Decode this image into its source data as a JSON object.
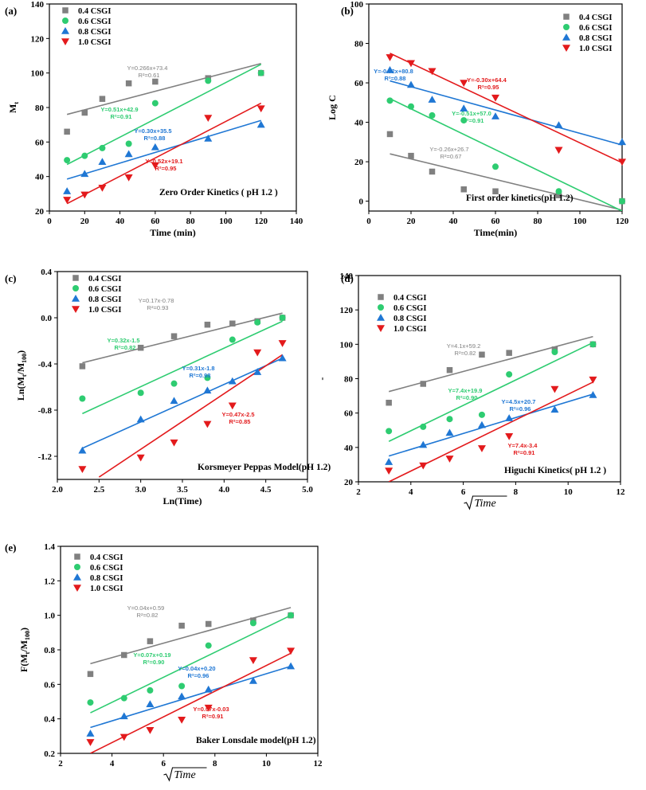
{
  "colors": {
    "s04": "#808080",
    "s06": "#2ecc71",
    "s08": "#1f77d4",
    "s10": "#e31a1c"
  },
  "chart_data": [
    {
      "id": "a",
      "type": "scatter",
      "panel_label": "(a)",
      "title": "Zero Order Kinetics ( pH 1.2 )",
      "xlabel": "Time (min)",
      "ylabel": "M",
      "ylabel_sub": "t",
      "xlim": [
        0,
        140
      ],
      "ylim": [
        20,
        140
      ],
      "xticks": [
        0,
        20,
        40,
        60,
        80,
        100,
        120,
        140
      ],
      "yticks": [
        20,
        40,
        60,
        80,
        100,
        120,
        140
      ],
      "xtick_labels": [
        "0",
        "20",
        "40",
        "60",
        "80",
        "100",
        "120",
        "140"
      ],
      "ytick_labels": [
        "20",
        "40",
        "60",
        "80",
        "100",
        "120",
        "140"
      ],
      "x": [
        10,
        20,
        30,
        45,
        60,
        90,
        120
      ],
      "series": [
        {
          "name": "0.4 CSGI",
          "marker": "square",
          "values": [
            66,
            77,
            85,
            94,
            95,
            97,
            100
          ],
          "fit": [
            76,
            105.5
          ],
          "eq": "Y=0.266x+73.4",
          "r2": "R²=0.61"
        },
        {
          "name": "0.6 CSGI",
          "marker": "circle",
          "values": [
            49.5,
            52,
            56.5,
            59,
            82.5,
            95.5,
            100
          ],
          "fit": [
            47,
            105
          ],
          "eq": "Y=0.51x+42.9",
          "r2": "R²=0.91"
        },
        {
          "name": "0.8 CSGI",
          "marker": "tri-up",
          "values": [
            31.5,
            41.5,
            48.5,
            53,
            57,
            62,
            70
          ],
          "fit": [
            38.5,
            72.5
          ],
          "eq": "Y=0.30x+35.5",
          "r2": "R²=0.88"
        },
        {
          "name": "1.0 CSGI",
          "marker": "tri-down",
          "values": [
            26.5,
            29.5,
            33.5,
            39.5,
            46.5,
            74,
            79.5
          ],
          "fit": [
            24.3,
            82.5
          ],
          "eq": "Y=0.52x+19.1",
          "r2": "R²=0.95"
        }
      ],
      "legend": "top-left"
    },
    {
      "id": "b",
      "type": "scatter",
      "panel_label": "(b)",
      "title": "First order kinetics(pH 1.2)",
      "xlabel": "Time(min)",
      "ylabel": "Log C",
      "xlim": [
        0,
        120
      ],
      "ylim": [
        -5,
        100
      ],
      "xticks": [
        0,
        20,
        40,
        60,
        80,
        100,
        120
      ],
      "yticks": [
        0,
        20,
        40,
        60,
        80,
        100
      ],
      "xtick_labels": [
        "0",
        "20",
        "40",
        "60",
        "80",
        "100",
        "120"
      ],
      "ytick_labels": [
        "0",
        "20",
        "40",
        "60",
        "80",
        "100"
      ],
      "x": [
        10,
        20,
        30,
        45,
        60,
        90,
        120
      ],
      "series": [
        {
          "name": "0.4 CSGI",
          "marker": "square",
          "values": [
            34,
            23,
            15,
            6,
            5,
            3,
            0
          ],
          "fit": [
            24,
            -4.5
          ],
          "eq": "Y=-0.26x+26.7",
          "r2": "R²=0.67"
        },
        {
          "name": "0.6 CSGI",
          "marker": "circle",
          "values": [
            51,
            48,
            43.5,
            41,
            17.5,
            5,
            0
          ],
          "fit": [
            52,
            -5
          ],
          "eq": "Y=-0.51x+57.0",
          "r2": "R²=0.91"
        },
        {
          "name": "0.8 CSGI",
          "marker": "tri-up",
          "values": [
            66.5,
            59,
            51.5,
            47,
            43,
            38.5,
            30
          ],
          "fit": [
            61,
            28.5
          ],
          "eq": "Y=-0.52x+80.8",
          "r2": "R²=0.88"
        },
        {
          "name": "1.0 CSGI",
          "marker": "tri-down",
          "values": [
            73,
            70,
            66,
            60,
            52.5,
            26,
            20
          ],
          "fit": [
            75,
            19.5
          ],
          "eq": "Y=-0.30x+64.4",
          "r2": "R²=0.95"
        }
      ],
      "legend": "top-right"
    },
    {
      "id": "c",
      "type": "scatter",
      "panel_label": "(c)",
      "title": "Korsmeyer Peppas Model(pH 1.2)",
      "xlabel": "Ln(Time)",
      "ylabel": "Ln(M",
      "ylabel_sub": "t",
      "ylabel_mid": "/M",
      "ylabel_sub2": "100",
      "ylabel_end": ")",
      "xlim": [
        2.0,
        5.0
      ],
      "ylim": [
        -1.4,
        0.4
      ],
      "xticks": [
        2.0,
        2.5,
        3.0,
        3.5,
        4.0,
        4.5,
        5.0
      ],
      "yticks": [
        -1.2,
        -0.8,
        -0.4,
        0.0,
        0.4
      ],
      "xtick_labels": [
        "2.0",
        "2.5",
        "3.0",
        "3.5",
        "4.0",
        "4.5",
        "5.0"
      ],
      "ytick_labels": [
        "-1.2",
        "-0.8",
        "-0.4",
        "0.0",
        "0.4"
      ],
      "x": [
        2.3,
        3.0,
        3.4,
        3.8,
        4.1,
        4.4,
        4.7
      ],
      "series": [
        {
          "name": "0.4 CSGI",
          "marker": "square",
          "values": [
            -0.42,
            -0.26,
            -0.16,
            -0.06,
            -0.05,
            -0.03,
            0.0
          ],
          "fit": [
            -0.39,
            0.04
          ],
          "eq": "Y=0.17x-0.78",
          "r2": "R²=0.93"
        },
        {
          "name": "0.6 CSGI",
          "marker": "circle",
          "values": [
            -0.7,
            -0.65,
            -0.57,
            -0.52,
            -0.19,
            -0.04,
            0.0
          ],
          "fit": [
            -0.83,
            -0.03
          ],
          "eq": "Y=0.32x-1.5",
          "r2": "R²=0.82"
        },
        {
          "name": "0.8 CSGI",
          "marker": "tri-up",
          "values": [
            -1.15,
            -0.88,
            -0.72,
            -0.63,
            -0.55,
            -0.47,
            -0.35
          ],
          "fit": [
            -1.13,
            -0.35
          ],
          "eq": "Y=0.31x-1.8",
          "r2": "R²=0.98"
        },
        {
          "name": "1.0 CSGI",
          "marker": "tri-down",
          "values": [
            -1.31,
            -1.21,
            -1.08,
            -0.92,
            -0.76,
            -0.3,
            -0.22
          ],
          "fit": [
            -1.38,
            -0.32
          ],
          "fit_x": [
            2.5,
            4.7
          ],
          "eq": "Y=0.47x-2.5",
          "r2": "R²=0.85"
        }
      ],
      "legend": "top-left"
    },
    {
      "id": "d",
      "type": "scatter",
      "panel_label": "(d)",
      "title": "Higuchi Kinetics( pH 1.2 )",
      "xlabel": "√Time",
      "ylabel": "-",
      "xlim": [
        2,
        12
      ],
      "ylim": [
        20,
        140
      ],
      "xticks": [
        2,
        4,
        6,
        8,
        10,
        12
      ],
      "yticks": [
        20,
        40,
        60,
        80,
        100,
        120,
        140
      ],
      "xtick_labels": [
        "2",
        "4",
        "6",
        "8",
        "10",
        "12"
      ],
      "ytick_labels": [
        "20",
        "40",
        "60",
        "80",
        "100",
        "120",
        "140"
      ],
      "x": [
        3.16,
        4.47,
        5.48,
        6.71,
        7.75,
        9.49,
        10.95
      ],
      "series": [
        {
          "name": "0.4 CSGI",
          "marker": "square",
          "values": [
            66,
            77,
            85,
            94,
            95,
            97,
            100
          ],
          "fit": [
            72.5,
            104.5
          ],
          "eq": "Y=4.1x+59.2",
          "r2": "R²=0.82"
        },
        {
          "name": "0.6 CSGI",
          "marker": "circle",
          "values": [
            49.5,
            52,
            56.5,
            59,
            82.5,
            95.5,
            100
          ],
          "fit": [
            43.5,
            101
          ],
          "eq": "Y=7.4x+19.9",
          "r2": "R²=0.90"
        },
        {
          "name": "0.8 CSGI",
          "marker": "tri-up",
          "values": [
            31.5,
            41.5,
            48.5,
            53,
            57,
            62,
            70.5
          ],
          "fit": [
            35,
            71
          ],
          "eq": "Y=4.5x+20.7",
          "r2": "R²=0.96"
        },
        {
          "name": "1.0 CSGI",
          "marker": "tri-down",
          "values": [
            26.5,
            29.5,
            33.5,
            39.5,
            46.5,
            74,
            79.5
          ],
          "fit": [
            20,
            78
          ],
          "eq": "Y=7.4x-3.4",
          "r2": "R²=0.91"
        }
      ],
      "legend": "top-left"
    },
    {
      "id": "e",
      "type": "scatter",
      "panel_label": "(e)",
      "title": "Baker Lonsdale model(pH 1.2)",
      "xlabel": "√Time",
      "ylabel": "F(M",
      "ylabel_sub": "t",
      "ylabel_mid": "/M",
      "ylabel_sub2": "100",
      "ylabel_end": ")",
      "xlim": [
        2,
        12
      ],
      "ylim": [
        0.2,
        1.4
      ],
      "xticks": [
        2,
        4,
        6,
        8,
        10,
        12
      ],
      "yticks": [
        0.2,
        0.4,
        0.6,
        0.8,
        1.0,
        1.2,
        1.4
      ],
      "xtick_labels": [
        "2",
        "4",
        "6",
        "8",
        "10",
        "12"
      ],
      "ytick_labels": [
        "0.2",
        "0.4",
        "0.6",
        "0.8",
        "1.0",
        "1.2",
        "1.4"
      ],
      "x": [
        3.16,
        4.47,
        5.48,
        6.71,
        7.75,
        9.49,
        10.95
      ],
      "series": [
        {
          "name": "0.4 CSGI",
          "marker": "square",
          "values": [
            0.66,
            0.77,
            0.85,
            0.94,
            0.95,
            0.97,
            1.0
          ],
          "fit": [
            0.72,
            1.045
          ],
          "eq": "Y=0.04x+0.59",
          "r2": "R²=0.82"
        },
        {
          "name": "0.6 CSGI",
          "marker": "circle",
          "values": [
            0.495,
            0.52,
            0.565,
            0.59,
            0.825,
            0.955,
            1.0
          ],
          "fit": [
            0.435,
            1.0
          ],
          "eq": "Y=0.07x+0.19",
          "r2": "R²=0.90"
        },
        {
          "name": "0.8 CSGI",
          "marker": "tri-up",
          "values": [
            0.315,
            0.415,
            0.485,
            0.53,
            0.57,
            0.62,
            0.705
          ],
          "fit": [
            0.35,
            0.705
          ],
          "eq": "Y=0.04x+0.20",
          "r2": "R²=0.96"
        },
        {
          "name": "1.0 CSGI",
          "marker": "tri-down",
          "values": [
            0.265,
            0.295,
            0.335,
            0.395,
            0.465,
            0.74,
            0.795
          ],
          "fit": [
            0.2,
            0.78
          ],
          "eq": "Y=0.07x-0.03",
          "r2": "R²=0.91"
        }
      ],
      "legend": "top-left"
    }
  ]
}
